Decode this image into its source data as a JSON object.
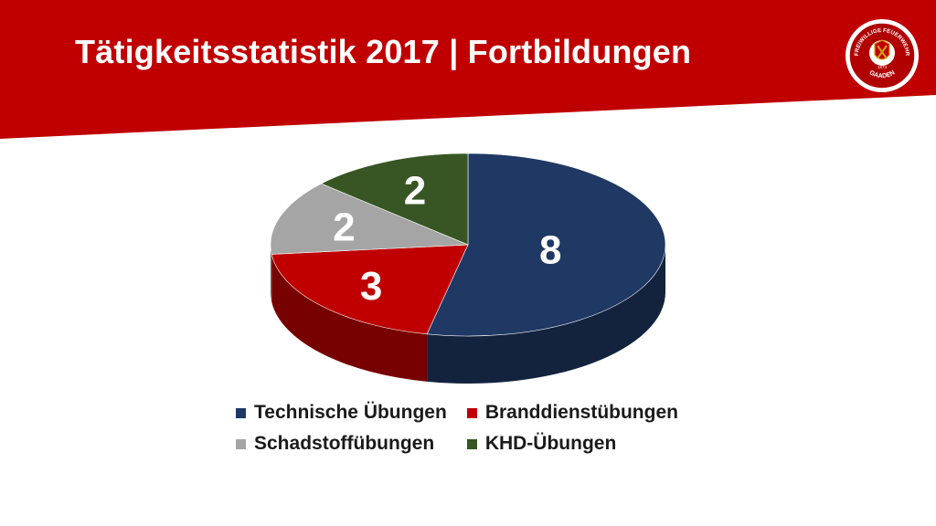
{
  "slide": {
    "title": "Tätigkeitsstatistik 2017 | Fortbildungen",
    "accent_color": "#c00000"
  },
  "logo": {
    "text_top": "FREIWILLIGE FEUERWEHR",
    "text_bottom": "GAADEN",
    "year": "1873"
  },
  "chart_data": {
    "type": "pie",
    "style": "3d",
    "categories": [
      "Technische Übungen",
      "Branddienstübungen",
      "Schadstoffübungen",
      "KHD-Übungen"
    ],
    "values": [
      8,
      3,
      2,
      2
    ],
    "colors": [
      "#1f3864",
      "#c00000",
      "#a5a5a5",
      "#375623"
    ],
    "data_labels": [
      "8",
      "3",
      "2",
      "2"
    ],
    "legend": "bottom",
    "title": ""
  }
}
